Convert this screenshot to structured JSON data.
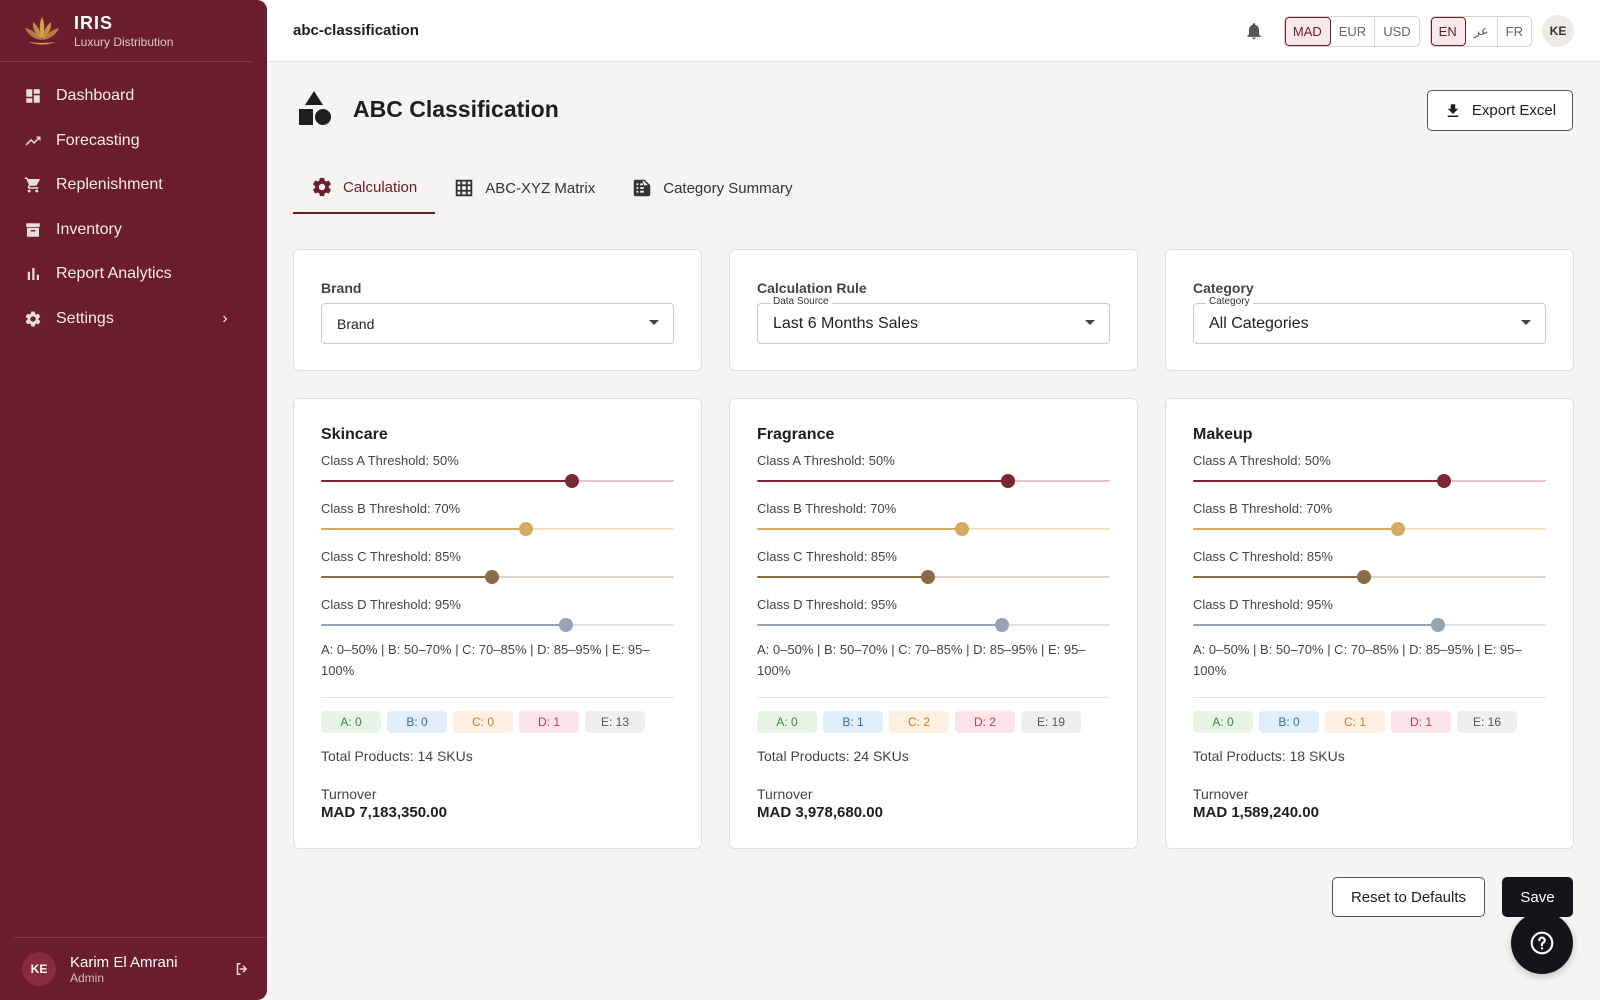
{
  "app": {
    "name": "IRIS",
    "subtitle": "Luxury Distribution"
  },
  "sidebar": {
    "items": [
      {
        "label": "Dashboard",
        "icon": "dashboard-icon"
      },
      {
        "label": "Forecasting",
        "icon": "trending-icon"
      },
      {
        "label": "Replenishment",
        "icon": "cart-icon"
      },
      {
        "label": "Inventory",
        "icon": "archive-icon"
      },
      {
        "label": "Report Analytics",
        "icon": "bar-chart-icon"
      },
      {
        "label": "Settings",
        "icon": "gear-icon"
      }
    ],
    "user": {
      "initials": "KE",
      "name": "Karim El Amrani",
      "role": "Admin"
    }
  },
  "topbar": {
    "route": "abc-classification",
    "currencies": [
      "MAD",
      "EUR",
      "USD"
    ],
    "active_currency": "MAD",
    "languages": [
      "EN",
      "عر",
      "FR"
    ],
    "active_language": "EN",
    "avatar": "KE"
  },
  "page": {
    "title": "ABC Classification",
    "export_label": "Export Excel"
  },
  "tabs": [
    {
      "label": "Calculation",
      "active": true
    },
    {
      "label": "ABC-XYZ Matrix",
      "active": false
    },
    {
      "label": "Category Summary",
      "active": false
    }
  ],
  "filters": {
    "brand": {
      "title": "Brand",
      "value": "Brand"
    },
    "rule": {
      "title": "Calculation Rule",
      "float_label": "Data Source",
      "value": "Last 6 Months Sales"
    },
    "category": {
      "title": "Category",
      "float_label": "Category",
      "value": "All Categories"
    }
  },
  "colors": {
    "primary": "#6b1c2d",
    "class_a": "#7b2636",
    "class_b": "#d4a962",
    "class_c": "#8a6b45",
    "class_d": "#9aa3b3"
  },
  "groups": [
    {
      "name": "Skincare",
      "thresholds": [
        {
          "label": "Class A Threshold: 50%",
          "position": 0.71
        },
        {
          "label": "Class B Threshold: 70%",
          "position": 0.58
        },
        {
          "label": "Class C Threshold: 85%",
          "position": 0.485
        },
        {
          "label": "Class D Threshold: 95%",
          "position": 0.695
        }
      ],
      "ranges": "A: 0–50% | B: 50–70% | C: 70–85% | D: 85–95% | E: 95–100%",
      "counts": {
        "a": "A: 0",
        "b": "B: 0",
        "c": "C: 0",
        "d": "D: 1",
        "e": "E: 13"
      },
      "total": "Total Products: 14 SKUs",
      "turnover_label": "Turnover",
      "turnover": "MAD 7,183,350.00"
    },
    {
      "name": "Fragrance",
      "thresholds": [
        {
          "label": "Class A Threshold: 50%",
          "position": 0.71
        },
        {
          "label": "Class B Threshold: 70%",
          "position": 0.58
        },
        {
          "label": "Class C Threshold: 85%",
          "position": 0.485
        },
        {
          "label": "Class D Threshold: 95%",
          "position": 0.695
        }
      ],
      "ranges": "A: 0–50% | B: 50–70% | C: 70–85% | D: 85–95% | E: 95–100%",
      "counts": {
        "a": "A: 0",
        "b": "B: 1",
        "c": "C: 2",
        "d": "D: 2",
        "e": "E: 19"
      },
      "total": "Total Products: 24 SKUs",
      "turnover_label": "Turnover",
      "turnover": "MAD 3,978,680.00"
    },
    {
      "name": "Makeup",
      "thresholds": [
        {
          "label": "Class A Threshold: 50%",
          "position": 0.71
        },
        {
          "label": "Class B Threshold: 70%",
          "position": 0.58
        },
        {
          "label": "Class C Threshold: 85%",
          "position": 0.485
        },
        {
          "label": "Class D Threshold: 95%",
          "position": 0.695
        }
      ],
      "ranges": "A: 0–50% | B: 50–70% | C: 70–85% | D: 85–95% | E: 95–100%",
      "counts": {
        "a": "A: 0",
        "b": "B: 0",
        "c": "C: 1",
        "d": "D: 1",
        "e": "E: 16"
      },
      "total": "Total Products: 18 SKUs",
      "turnover_label": "Turnover",
      "turnover": "MAD 1,589,240.00"
    }
  ],
  "actions": {
    "reset": "Reset to Defaults",
    "save": "Save"
  }
}
